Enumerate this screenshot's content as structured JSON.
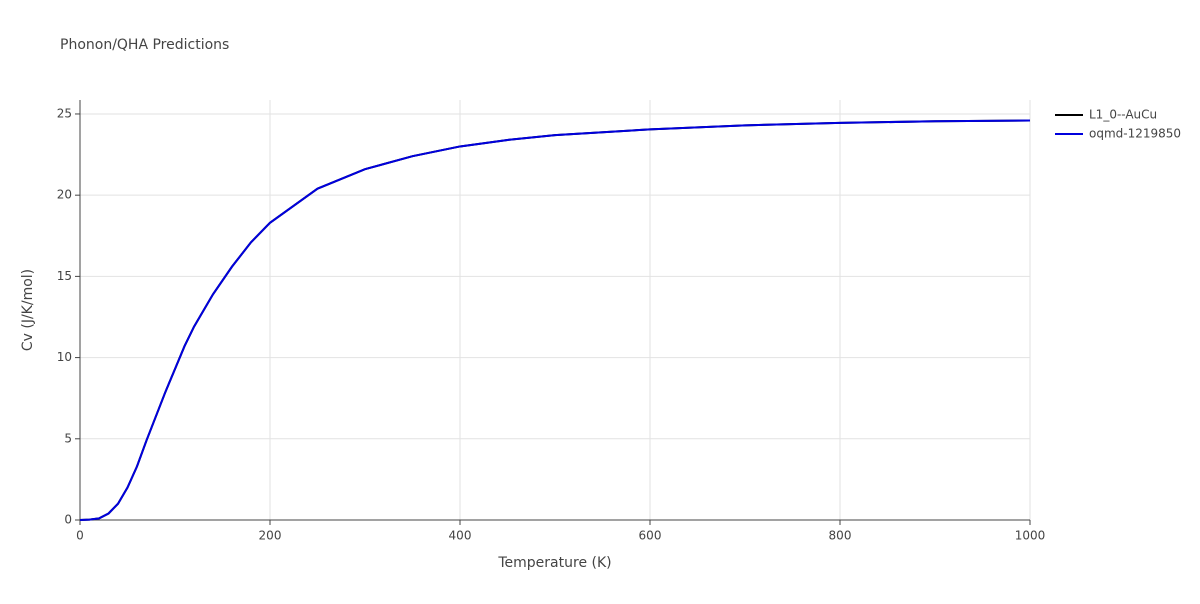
{
  "chart_data": {
    "type": "line",
    "title": "Phonon/QHA Predictions",
    "x_label": "Temperature (K)",
    "y_label": "Cv (J/K/mol)",
    "x": [
      0,
      10,
      20,
      30,
      40,
      50,
      60,
      70,
      80,
      90,
      100,
      110,
      120,
      140,
      160,
      180,
      200,
      250,
      300,
      350,
      400,
      450,
      500,
      600,
      700,
      800,
      900,
      1000
    ],
    "series": [
      {
        "name": "L1_0--AuCu",
        "color": "#000000",
        "values": [
          0,
          0.02,
          0.1,
          0.4,
          1.0,
          2.0,
          3.3,
          4.9,
          6.4,
          7.9,
          9.3,
          10.7,
          11.9,
          13.9,
          15.6,
          17.1,
          18.3,
          20.4,
          21.6,
          22.4,
          23.0,
          23.4,
          23.7,
          24.05,
          24.3,
          24.45,
          24.55,
          24.6
        ]
      },
      {
        "name": "oqmd-1219850",
        "color": "#0000dd",
        "values": [
          0,
          0.02,
          0.1,
          0.4,
          1.0,
          2.0,
          3.3,
          4.9,
          6.4,
          7.9,
          9.3,
          10.7,
          11.9,
          13.9,
          15.6,
          17.1,
          18.3,
          20.4,
          21.6,
          22.4,
          23.0,
          23.4,
          23.7,
          24.05,
          24.3,
          24.45,
          24.55,
          24.6
        ]
      }
    ],
    "xlim": [
      0,
      1000
    ],
    "xticks": [
      0,
      200,
      400,
      600,
      800,
      1000
    ],
    "ylim": [
      0,
      25.86
    ],
    "yticks": [
      0,
      5,
      10,
      15,
      20,
      25
    ],
    "grid": true,
    "legend": "outside-right"
  }
}
